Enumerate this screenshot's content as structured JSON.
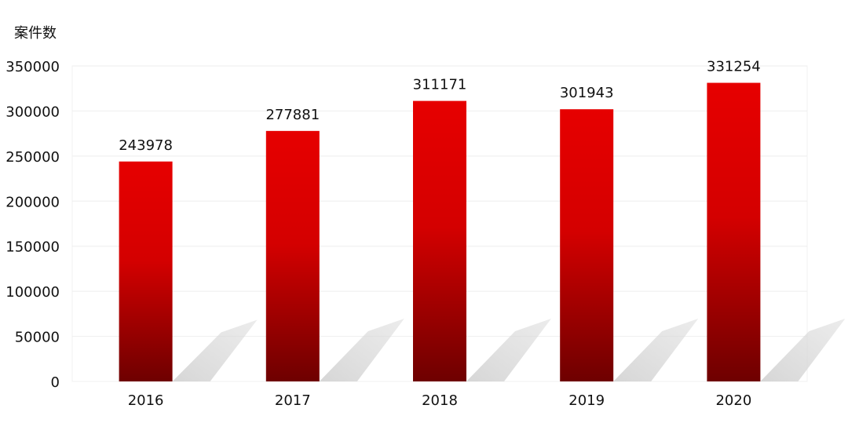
{
  "chart_data": {
    "type": "bar",
    "ylabel": "案件数",
    "xlabel": "",
    "title": "",
    "categories": [
      "2016",
      "2017",
      "2018",
      "2019",
      "2020"
    ],
    "values": [
      243978,
      277881,
      311171,
      301943,
      331254
    ],
    "data_labels": [
      "243978",
      "277881",
      "311171",
      "301943",
      "331254"
    ],
    "ylim": [
      0,
      350000
    ],
    "yticks": [
      0,
      50000,
      100000,
      150000,
      200000,
      250000,
      300000,
      350000
    ],
    "ytick_labels": [
      "0",
      "50000",
      "100000",
      "150000",
      "200000",
      "250000",
      "300000",
      "350000"
    ],
    "grid": true,
    "legend": "none",
    "colors": {
      "bar_top": "#e60000",
      "bar_bottom": "#6e0000",
      "grid": "#eeeeee",
      "shadow": "#cfcfcf"
    }
  }
}
